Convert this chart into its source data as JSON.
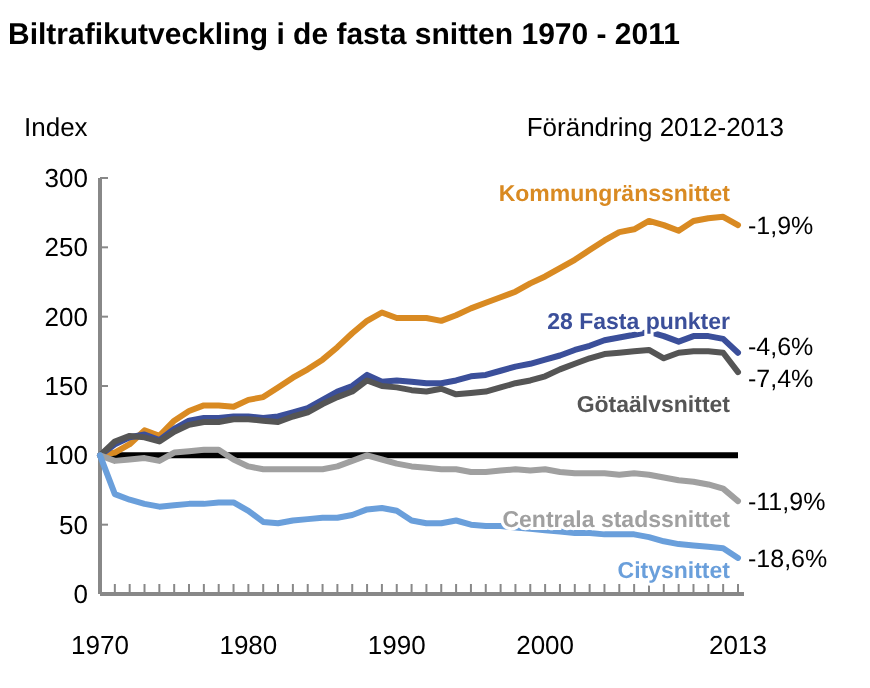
{
  "chart_data": {
    "type": "line",
    "title": "Biltrafikutveckling i de fasta snitten 1970 - 2011",
    "subtitle": "Förändring 2012-2013",
    "ylabel": "Index",
    "x": [
      1970,
      1971,
      1972,
      1973,
      1974,
      1975,
      1976,
      1977,
      1978,
      1979,
      1980,
      1981,
      1982,
      1983,
      1984,
      1985,
      1986,
      1987,
      1988,
      1989,
      1990,
      1991,
      1992,
      1993,
      1994,
      1995,
      1996,
      1997,
      1998,
      1999,
      2000,
      2001,
      2002,
      2003,
      2004,
      2005,
      2006,
      2007,
      2008,
      2009,
      2010,
      2011,
      2012,
      2013
    ],
    "series": [
      {
        "name": "Kommungränssnittet",
        "color": "#d98a22",
        "values": [
          100,
          102,
          108,
          118,
          114,
          125,
          132,
          136,
          136,
          135,
          140,
          142,
          149,
          156,
          162,
          169,
          178,
          188,
          197,
          203,
          199,
          199,
          199,
          197,
          201,
          206,
          210,
          214,
          218,
          224,
          229,
          235,
          241,
          248,
          255,
          261,
          263,
          269,
          266,
          262,
          269,
          271,
          272,
          266
        ]
      },
      {
        "name": "28 Fasta punkter",
        "color": "#3b4f9a",
        "values": [
          100,
          108,
          113,
          115,
          111,
          119,
          125,
          127,
          127,
          128,
          128,
          127,
          128,
          131,
          134,
          140,
          146,
          150,
          158,
          153,
          154,
          153,
          152,
          152,
          154,
          157,
          158,
          161,
          164,
          166,
          169,
          172,
          176,
          179,
          183,
          185,
          187,
          189,
          186,
          182,
          186,
          186,
          184,
          174
        ]
      },
      {
        "name": "Götaälvsnittet",
        "color": "#555555",
        "values": [
          100,
          110,
          114,
          113,
          110,
          117,
          122,
          124,
          124,
          126,
          126,
          125,
          124,
          128,
          131,
          137,
          142,
          146,
          154,
          150,
          149,
          147,
          146,
          148,
          144,
          145,
          146,
          149,
          152,
          154,
          157,
          162,
          166,
          170,
          173,
          174,
          175,
          176,
          170,
          174,
          175,
          175,
          174,
          160
        ]
      },
      {
        "name": "Centrala stadssnittet",
        "color": "#a0a0a0",
        "values": [
          100,
          96,
          97,
          98,
          96,
          102,
          103,
          104,
          104,
          97,
          92,
          90,
          90,
          90,
          90,
          90,
          92,
          96,
          100,
          97,
          94,
          92,
          91,
          90,
          90,
          88,
          88,
          89,
          90,
          89,
          90,
          88,
          87,
          87,
          87,
          86,
          87,
          86,
          84,
          82,
          81,
          79,
          76,
          67
        ]
      },
      {
        "name": "Citysnittet",
        "color": "#6a9fdb",
        "values": [
          100,
          72,
          68,
          65,
          63,
          64,
          65,
          65,
          66,
          66,
          60,
          52,
          51,
          53,
          54,
          55,
          55,
          57,
          61,
          62,
          60,
          53,
          51,
          51,
          53,
          50,
          49,
          49,
          48,
          47,
          46,
          45,
          44,
          44,
          43,
          43,
          43,
          41,
          38,
          36,
          35,
          34,
          33,
          26
        ]
      }
    ],
    "ref_lines": [
      {
        "axis": "y",
        "value": 100,
        "color": "#000000"
      }
    ],
    "annotations": [
      "-1,9%",
      "-4,6%",
      "-7,4%",
      "-11,9%",
      "-18,6%"
    ],
    "xlim": [
      1970,
      2013
    ],
    "xticks": [
      1970,
      {
        "value": 1971,
        "label": null
      },
      {
        "value": 1972,
        "label": null
      },
      {
        "value": 1973,
        "label": null
      },
      {
        "value": 1974,
        "label": null
      },
      {
        "value": 1975,
        "label": null
      },
      {
        "value": 1976,
        "label": null
      },
      {
        "value": 1977,
        "label": null
      },
      {
        "value": 1978,
        "label": null
      },
      {
        "value": 1979,
        "label": null
      },
      1980,
      {
        "value": 1981,
        "label": null
      },
      {
        "value": 1982,
        "label": null
      },
      {
        "value": 1983,
        "label": null
      },
      {
        "value": 1984,
        "label": null
      },
      {
        "value": 1985,
        "label": null
      },
      {
        "value": 1986,
        "label": null
      },
      {
        "value": 1987,
        "label": null
      },
      {
        "value": 1988,
        "label": null
      },
      {
        "value": 1989,
        "label": null
      },
      1990,
      {
        "value": 1991,
        "label": null
      },
      {
        "value": 1992,
        "label": null
      },
      {
        "value": 1993,
        "label": null
      },
      {
        "value": 1994,
        "label": null
      },
      {
        "value": 1995,
        "label": null
      },
      {
        "value": 1996,
        "label": null
      },
      {
        "value": 1997,
        "label": null
      },
      {
        "value": 1998,
        "label": null
      },
      {
        "value": 1999,
        "label": null
      },
      2000,
      {
        "value": 2001,
        "label": null
      },
      {
        "value": 2002,
        "label": null
      },
      {
        "value": 2003,
        "label": null
      },
      {
        "value": 2004,
        "label": null
      },
      {
        "value": 2005,
        "label": null
      },
      {
        "value": 2006,
        "label": null
      },
      {
        "value": 2007,
        "label": null
      },
      {
        "value": 2008,
        "label": null
      },
      {
        "value": 2009,
        "label": null
      },
      {
        "value": 2010,
        "label": null
      },
      {
        "value": 2011,
        "label": null
      },
      {
        "value": 2012,
        "label": null
      },
      2013
    ],
    "ylim": [
      0,
      300
    ],
    "yticks": [
      0,
      50,
      100,
      150,
      200,
      250,
      300
    ],
    "grid": false,
    "legend": false,
    "marker": "none",
    "line_style": "solid"
  }
}
